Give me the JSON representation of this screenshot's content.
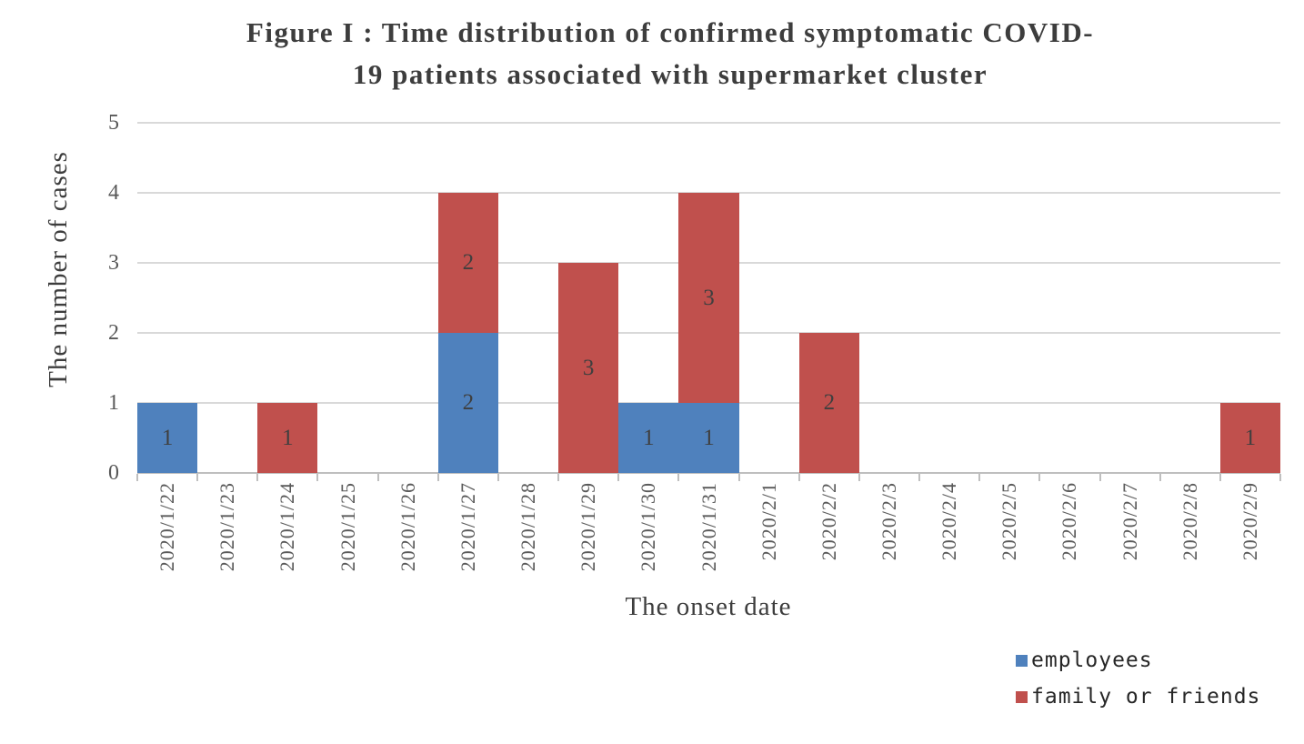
{
  "figure": {
    "title_line1": "Figure I : Time distribution of confirmed symptomatic COVID-",
    "title_line2": "19 patients associated with supermarket cluster"
  },
  "chart_data": {
    "type": "bar",
    "stacked": true,
    "title": "Figure I : Time distribution of confirmed symptomatic COVID-19 patients associated with supermarket cluster",
    "xlabel": "The onset date",
    "ylabel": "The number of cases",
    "ylim": [
      0,
      5
    ],
    "yticks": [
      0,
      1,
      2,
      3,
      4,
      5
    ],
    "grid": "horizontal-gridlines",
    "legend_position": "bottom-right",
    "bar_value_labels": true,
    "categories": [
      "2020/1/22",
      "2020/1/23",
      "2020/1/24",
      "2020/1/25",
      "2020/1/26",
      "2020/1/27",
      "2020/1/28",
      "2020/1/29",
      "2020/1/30",
      "2020/1/31",
      "2020/2/1",
      "2020/2/2",
      "2020/2/3",
      "2020/2/4",
      "2020/2/5",
      "2020/2/6",
      "2020/2/7",
      "2020/2/8",
      "2020/2/9"
    ],
    "series": [
      {
        "name": "employees",
        "color": "#4F81BD",
        "values": [
          1,
          0,
          0,
          0,
          0,
          2,
          0,
          0,
          1,
          1,
          0,
          0,
          0,
          0,
          0,
          0,
          0,
          0,
          0
        ]
      },
      {
        "name": "family or friends",
        "color": "#C0504D",
        "values": [
          0,
          0,
          1,
          0,
          0,
          2,
          0,
          3,
          0,
          3,
          0,
          2,
          0,
          0,
          0,
          0,
          0,
          0,
          1
        ]
      }
    ]
  },
  "style_colors": {
    "gridline": "#D9D9D9",
    "axis_line": "#BFBFBF",
    "tick_label": "#595959",
    "title_text": "#3D3D3D",
    "data_label": "#3F3F3F",
    "legend_text": "#262626",
    "background": "#FFFFFF"
  }
}
